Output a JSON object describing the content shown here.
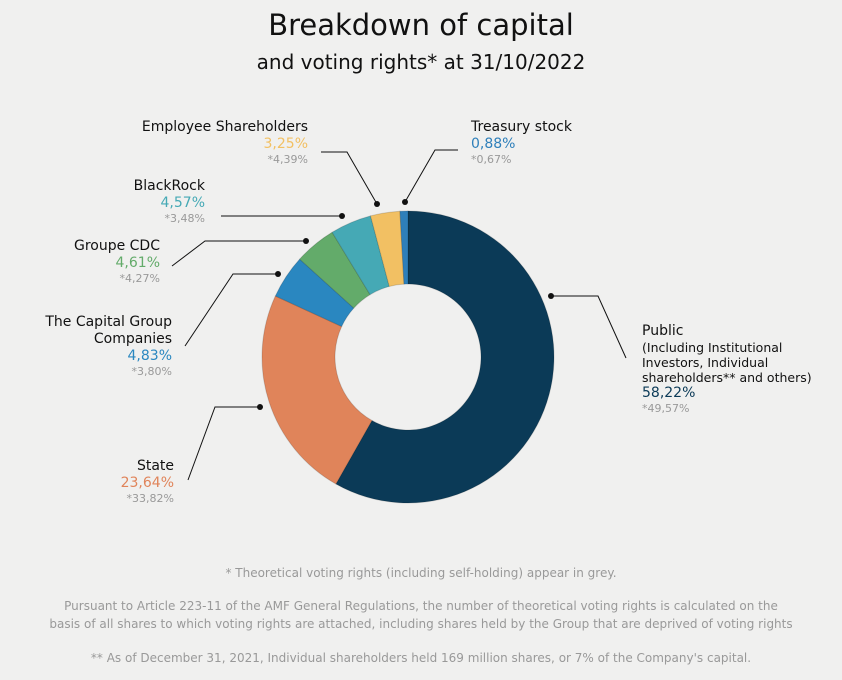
{
  "header": {
    "title": "Breakdown of capital",
    "subtitle": "and voting rights* at 31/10/2022"
  },
  "chart_data": {
    "type": "pie",
    "variant": "donut",
    "title": "Breakdown of capital",
    "subtitle": "and voting rights* at 31/10/2022",
    "start": "top, clockwise",
    "slices": [
      {
        "name": "Public",
        "description": "(Including Institutional Investors, Individual shareholders** and others)",
        "capital_label": "58,22%",
        "voting_label": "*49,57%",
        "value": 58.22,
        "voting_rights": 49.57,
        "color": "#0b3a57"
      },
      {
        "name": "State",
        "description": "",
        "capital_label": "23,64%",
        "voting_label": "*33,82%",
        "value": 23.64,
        "voting_rights": 33.82,
        "color": "#e0845a"
      },
      {
        "name": "The Capital Group Companies",
        "description": "",
        "capital_label": "4,83%",
        "voting_label": "*3,80%",
        "value": 4.83,
        "voting_rights": 3.8,
        "color": "#2a87c0"
      },
      {
        "name": "Groupe CDC",
        "description": "",
        "capital_label": "4,61%",
        "voting_label": "*4,27%",
        "value": 4.61,
        "voting_rights": 4.27,
        "color": "#63ab6a"
      },
      {
        "name": "BlackRock",
        "description": "",
        "capital_label": "4,57%",
        "voting_label": "*3,48%",
        "value": 4.57,
        "voting_rights": 3.48,
        "color": "#45a9b5"
      },
      {
        "name": "Employee Shareholders",
        "description": "",
        "capital_label": "3,25%",
        "voting_label": "*4,39%",
        "value": 3.25,
        "voting_rights": 4.39,
        "color": "#f2c063"
      },
      {
        "name": "Treasury stock",
        "description": "",
        "capital_label": "0,88%",
        "voting_label": "*0,67%",
        "value": 0.88,
        "voting_rights": 0.67,
        "color": "#2e7fba"
      }
    ]
  },
  "footnotes": {
    "grey_note": "* Theoretical voting rights (including self-holding) appear in grey.",
    "amf_line1": "Pursuant to Article 223-11 of the AMF General Regulations, the number of theoretical voting rights is calculated on the",
    "amf_line2": "basis of all shares to which voting rights are attached, including shares held by the Group that are deprived of voting rights",
    "individual_note": "** As of December 31, 2021, Individual shareholders held 169 million shares, or 7% of the Company's capital."
  }
}
